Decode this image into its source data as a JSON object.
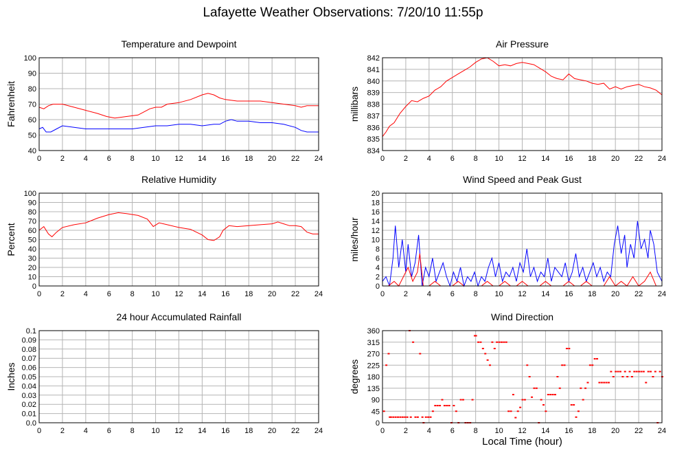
{
  "page": {
    "title": "Lafayette Weather Observations: 7/20/10 11:55p",
    "xlabel": "Local Time (hour)"
  },
  "colors": {
    "primary": "#ff0000",
    "secondary": "#0000ff",
    "grid": "#b4b4b4"
  },
  "chart_data": [
    {
      "id": "temp",
      "type": "line",
      "title": "Temperature and Dewpoint",
      "ylabel": "Fahrenheit",
      "xlim": [
        0,
        24
      ],
      "ylim": [
        40,
        100
      ],
      "xticks": [
        0,
        2,
        4,
        6,
        8,
        10,
        12,
        14,
        16,
        18,
        20,
        22,
        24
      ],
      "yticks": [
        40,
        50,
        60,
        70,
        80,
        90,
        100
      ],
      "series": [
        {
          "color": "#ff0000",
          "x": [
            0,
            0.4,
            0.8,
            1.2,
            2,
            3,
            4,
            5,
            5.8,
            6.5,
            7.5,
            8.5,
            9,
            9.5,
            10,
            10.5,
            11,
            12,
            13,
            14,
            14.5,
            15,
            15.5,
            16,
            17,
            18,
            19,
            20,
            21,
            22,
            22.5,
            23,
            24
          ],
          "y": [
            68,
            67,
            69,
            70,
            70,
            68,
            66,
            64,
            62,
            61,
            62,
            63,
            65,
            67,
            68,
            68,
            70,
            71,
            73,
            76,
            77,
            76,
            74,
            73,
            72,
            72,
            72,
            71,
            70,
            69,
            68,
            69,
            69
          ]
        },
        {
          "color": "#0000ff",
          "x": [
            0,
            0.3,
            0.6,
            1,
            1.5,
            2,
            3,
            4,
            5,
            6,
            7,
            8,
            9,
            10,
            11,
            12,
            13,
            14,
            15,
            15.5,
            16,
            16.5,
            17,
            18,
            19,
            20,
            21,
            22,
            22.5,
            23,
            24
          ],
          "y": [
            54,
            55,
            52,
            52,
            54,
            56,
            55,
            54,
            54,
            54,
            54,
            54,
            55,
            56,
            56,
            57,
            57,
            56,
            57,
            57,
            59,
            60,
            59,
            59,
            58,
            58,
            57,
            55,
            53,
            52,
            52
          ]
        }
      ]
    },
    {
      "id": "pressure",
      "type": "line",
      "title": "Air Pressure",
      "ylabel": "millibars",
      "xlim": [
        0,
        24
      ],
      "ylim": [
        834,
        842
      ],
      "xticks": [
        0,
        2,
        4,
        6,
        8,
        10,
        12,
        14,
        16,
        18,
        20,
        22,
        24
      ],
      "yticks": [
        834,
        835,
        836,
        837,
        838,
        839,
        840,
        841,
        842
      ],
      "series": [
        {
          "color": "#ff0000",
          "x": [
            0,
            0.3,
            0.6,
            1,
            1.5,
            2,
            2.5,
            3,
            3.5,
            4,
            4.5,
            5,
            5.5,
            6,
            6.5,
            7,
            7.5,
            8,
            8.5,
            9,
            9.5,
            10,
            10.5,
            11,
            11.5,
            12,
            12.5,
            13,
            13.5,
            14,
            14.5,
            15,
            15.5,
            16,
            16.5,
            17,
            17.5,
            18,
            18.5,
            19,
            19.5,
            20,
            20.5,
            21,
            21.5,
            22,
            22.5,
            23,
            23.5,
            24
          ],
          "y": [
            835.2,
            835.6,
            836.1,
            836.4,
            837.2,
            837.8,
            838.3,
            838.2,
            838.5,
            838.7,
            839.2,
            839.5,
            840,
            840.3,
            840.6,
            840.9,
            841.2,
            841.6,
            841.9,
            842,
            841.7,
            841.3,
            841.4,
            841.3,
            841.5,
            841.6,
            841.5,
            841.4,
            841.1,
            840.8,
            840.4,
            840.2,
            840.1,
            840.6,
            840.2,
            840.1,
            840,
            839.8,
            839.7,
            839.8,
            839.3,
            839.5,
            839.3,
            839.5,
            839.6,
            839.7,
            839.5,
            839.4,
            839.2,
            838.8
          ]
        }
      ]
    },
    {
      "id": "humidity",
      "type": "line",
      "title": "Relative Humidity",
      "ylabel": "Percent",
      "xlim": [
        0,
        24
      ],
      "ylim": [
        0,
        100
      ],
      "xticks": [
        0,
        2,
        4,
        6,
        8,
        10,
        12,
        14,
        16,
        18,
        20,
        22,
        24
      ],
      "yticks": [
        0,
        10,
        20,
        30,
        40,
        50,
        60,
        70,
        80,
        90,
        100
      ],
      "series": [
        {
          "color": "#ff0000",
          "x": [
            0,
            0.4,
            0.8,
            1.1,
            1.5,
            2,
            3,
            4,
            5,
            6,
            6.8,
            7.5,
            8.5,
            9.3,
            9.8,
            10.3,
            11,
            12,
            13,
            13.5,
            14,
            14.5,
            15,
            15.5,
            15.8,
            16.3,
            17,
            18,
            19,
            20,
            20.5,
            21,
            21.5,
            22,
            22.5,
            23,
            23.5,
            24
          ],
          "y": [
            60,
            64,
            56,
            53,
            58,
            63,
            66,
            68,
            73,
            77,
            79,
            78,
            76,
            72,
            64,
            68,
            66,
            63,
            61,
            58,
            55,
            50,
            49,
            53,
            60,
            65,
            64,
            65,
            66,
            67,
            69,
            67,
            65,
            65,
            64,
            58,
            56,
            56
          ]
        }
      ]
    },
    {
      "id": "wind",
      "type": "line",
      "title": "Wind Speed and Peak Gust",
      "ylabel": "miles/hour",
      "xlim": [
        0,
        24
      ],
      "ylim": [
        0,
        20
      ],
      "xticks": [
        0,
        2,
        4,
        6,
        8,
        10,
        12,
        14,
        16,
        18,
        20,
        22,
        24
      ],
      "yticks": [
        0,
        2,
        4,
        6,
        8,
        10,
        12,
        14,
        16,
        18,
        20
      ],
      "series": [
        {
          "color": "#0000ff",
          "x": [
            0,
            0.3,
            0.6,
            0.9,
            1.1,
            1.4,
            1.7,
            2,
            2.2,
            2.5,
            2.8,
            3.1,
            3.4,
            3.7,
            4,
            4.3,
            4.6,
            4.9,
            5.2,
            5.5,
            5.8,
            6.1,
            6.4,
            6.7,
            7,
            7.3,
            7.6,
            7.9,
            8.2,
            8.5,
            8.8,
            9.1,
            9.4,
            9.7,
            10,
            10.3,
            10.6,
            10.9,
            11.2,
            11.5,
            11.8,
            12.1,
            12.4,
            12.7,
            13,
            13.3,
            13.6,
            13.9,
            14.2,
            14.5,
            14.8,
            15.1,
            15.4,
            15.7,
            16,
            16.3,
            16.6,
            16.9,
            17.2,
            17.5,
            17.8,
            18.1,
            18.4,
            18.7,
            19,
            19.3,
            19.6,
            19.9,
            20.2,
            20.5,
            20.8,
            21,
            21.3,
            21.6,
            21.9,
            22.2,
            22.5,
            22.8,
            23,
            23.3,
            23.6,
            24
          ],
          "y": [
            1,
            2,
            0,
            6,
            13,
            4,
            10,
            3,
            9,
            2,
            5,
            11,
            0,
            4,
            2,
            6,
            1,
            3,
            5,
            2,
            0,
            3,
            1,
            4,
            0,
            2,
            1,
            3,
            0,
            2,
            1,
            4,
            6,
            2,
            5,
            1,
            3,
            2,
            4,
            1,
            5,
            3,
            8,
            2,
            4,
            1,
            3,
            2,
            6,
            1,
            4,
            3,
            2,
            5,
            1,
            3,
            7,
            2,
            4,
            1,
            3,
            5,
            2,
            4,
            1,
            3,
            2,
            9,
            13,
            7,
            11,
            4,
            9,
            6,
            14,
            8,
            10,
            6,
            12,
            9,
            3,
            1
          ]
        },
        {
          "color": "#ff0000",
          "x": [
            0,
            0.5,
            1,
            1.4,
            1.8,
            2.2,
            2.6,
            3,
            3.2,
            3.5,
            4,
            4.5,
            5,
            5.5,
            6,
            6.5,
            7,
            7.5,
            8,
            8.5,
            9,
            9.5,
            10,
            10.5,
            11,
            11.5,
            12,
            12.5,
            13,
            13.5,
            14,
            14.5,
            15,
            15.5,
            16,
            16.5,
            17,
            17.5,
            18,
            18.5,
            19,
            19.5,
            20,
            20.5,
            21,
            21.5,
            22,
            22.5,
            23,
            23.5,
            24
          ],
          "y": [
            0,
            0,
            1,
            0,
            2,
            4,
            1,
            3,
            7,
            0,
            0,
            1,
            0,
            0,
            0,
            1,
            0,
            0,
            0,
            0,
            1,
            0,
            0,
            1,
            0,
            0,
            1,
            0,
            0,
            0,
            1,
            0,
            0,
            0,
            1,
            0,
            0,
            1,
            0,
            0,
            0,
            2,
            0,
            1,
            0,
            2,
            0,
            1,
            3,
            0,
            0
          ]
        }
      ]
    },
    {
      "id": "rain",
      "type": "line",
      "title": "24 hour Accumulated Rainfall",
      "ylabel": "Inches",
      "xlim": [
        0,
        24
      ],
      "ylim": [
        0,
        0.1
      ],
      "xticks": [
        0,
        2,
        4,
        6,
        8,
        10,
        12,
        14,
        16,
        18,
        20,
        22,
        24
      ],
      "yticks": [
        0.0,
        0.01,
        0.02,
        0.03,
        0.04,
        0.05,
        0.06,
        0.07,
        0.08,
        0.09,
        0.1
      ],
      "ytick_labels": [
        "0.0",
        "0.01",
        "0.02",
        "0.03",
        "0.04",
        "0.05",
        "0.06",
        "0.07",
        "0.08",
        "0.09",
        "0.1"
      ],
      "series": [
        {
          "color": "#ff0000",
          "x": [
            0,
            24
          ],
          "y": [
            0,
            0
          ]
        }
      ]
    },
    {
      "id": "direction",
      "type": "scatter",
      "title": "Wind Direction",
      "ylabel": "degrees",
      "xlim": [
        0,
        24
      ],
      "ylim": [
        0,
        360
      ],
      "xticks": [
        0,
        2,
        4,
        6,
        8,
        10,
        12,
        14,
        16,
        18,
        20,
        22,
        24
      ],
      "yticks": [
        0,
        45,
        90,
        135,
        180,
        225,
        270,
        315,
        360
      ],
      "series": [
        {
          "color": "#ff0000",
          "x": [
            0.1,
            0.3,
            0.5,
            0.6,
            0.7,
            0.9,
            1.1,
            1.3,
            1.5,
            1.7,
            1.9,
            2.1,
            2.3,
            2.4,
            2.6,
            2.8,
            3.0,
            3.2,
            3.4,
            3.5,
            3.7,
            3.9,
            4.1,
            4.3,
            4.5,
            4.7,
            4.9,
            5.1,
            5.3,
            5.5,
            5.7,
            5.9,
            6.1,
            6.3,
            6.5,
            6.7,
            6.9,
            7.1,
            7.3,
            7.5,
            7.7,
            7.9,
            8.0,
            8.2,
            8.4,
            8.6,
            8.8,
            9.0,
            9.2,
            9.4,
            9.6,
            9.8,
            10.0,
            10.2,
            10.4,
            10.6,
            10.8,
            11.0,
            11.2,
            11.4,
            11.6,
            11.8,
            12.0,
            12.2,
            12.4,
            12.6,
            12.8,
            13.0,
            13.2,
            13.4,
            13.6,
            13.8,
            14.0,
            14.2,
            14.4,
            14.6,
            14.8,
            15.0,
            15.2,
            15.4,
            15.6,
            15.8,
            16.0,
            16.2,
            16.4,
            16.6,
            16.8,
            17.0,
            17.2,
            17.4,
            17.6,
            17.8,
            18.0,
            18.2,
            18.4,
            18.6,
            18.8,
            19.0,
            19.2,
            19.4,
            19.6,
            19.8,
            20.0,
            20.2,
            20.4,
            20.6,
            20.8,
            21.0,
            21.2,
            21.4,
            21.6,
            21.8,
            22.0,
            22.2,
            22.4,
            22.6,
            22.8,
            23.0,
            23.2,
            23.4,
            23.6,
            23.8,
            24.0
          ],
          "y": [
            45,
            225,
            270,
            22,
            22,
            22,
            22,
            22,
            22,
            22,
            22,
            22,
            360,
            22,
            315,
            22,
            22,
            270,
            22,
            0,
            22,
            22,
            22,
            45,
            67,
            67,
            67,
            90,
            67,
            67,
            67,
            0,
            67,
            45,
            0,
            90,
            90,
            0,
            0,
            0,
            90,
            340,
            340,
            315,
            315,
            290,
            270,
            245,
            225,
            315,
            290,
            315,
            315,
            315,
            315,
            315,
            45,
            45,
            110,
            20,
            45,
            60,
            90,
            90,
            225,
            180,
            100,
            135,
            135,
            0,
            90,
            70,
            45,
            110,
            110,
            110,
            110,
            180,
            135,
            225,
            225,
            290,
            290,
            70,
            70,
            22,
            45,
            135,
            90,
            135,
            157,
            225,
            225,
            250,
            250,
            157,
            157,
            157,
            157,
            157,
            200,
            180,
            200,
            200,
            200,
            180,
            200,
            180,
            200,
            180,
            200,
            200,
            200,
            200,
            200,
            157,
            200,
            200,
            180,
            200,
            0,
            200,
            180
          ]
        }
      ]
    }
  ]
}
